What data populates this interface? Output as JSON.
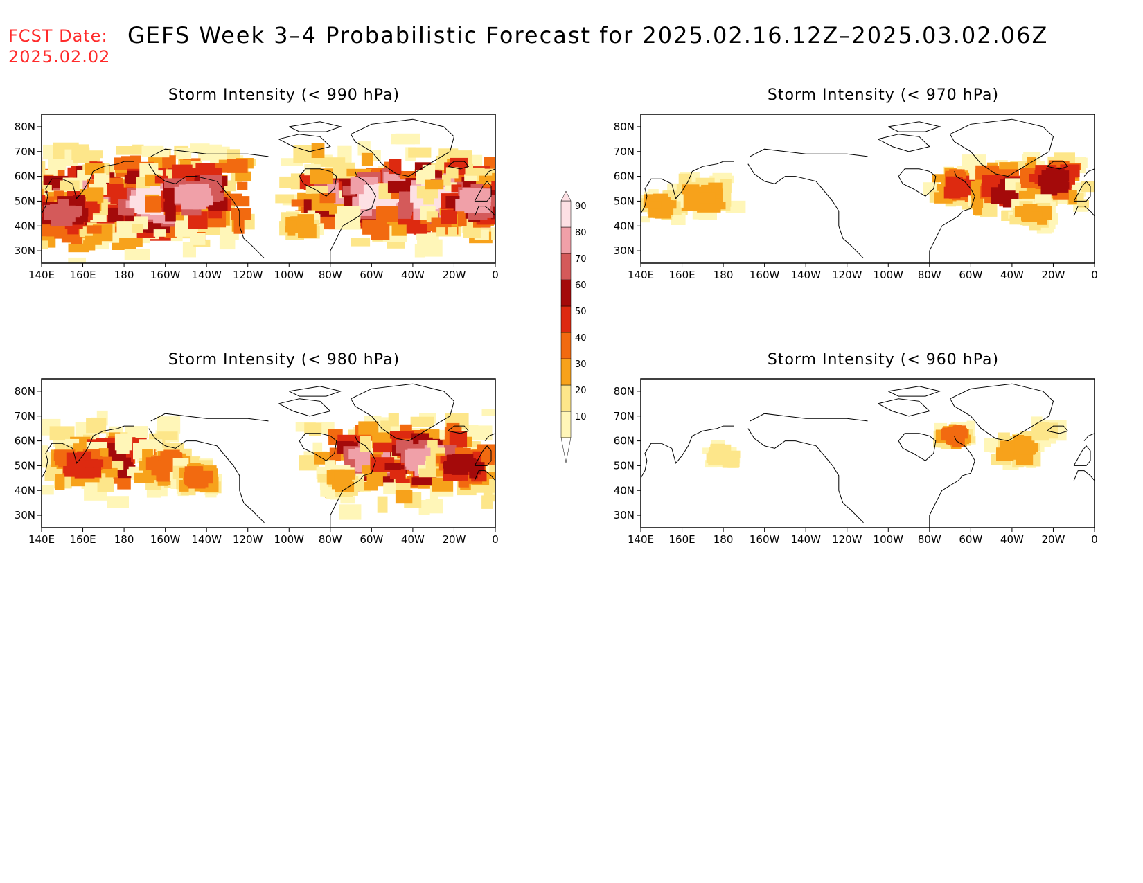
{
  "header": {
    "fcst_line1": "FCST Date:",
    "fcst_line2": "2025.02.02",
    "title": "GEFS Week 3–4 Probabilistic Forecast for 2025.02.16.12Z–2025.03.02.06Z"
  },
  "colors": {
    "p10": "#fff6b8",
    "p20": "#fde68a",
    "p30": "#f7a21b",
    "p40": "#f26a10",
    "p50": "#dd2a10",
    "p60": "#a40a0a",
    "p70": "#d45a5a",
    "p80": "#f0a0a8",
    "p90": "#fde0e4",
    "coast": "#000000"
  },
  "colorbar": {
    "levels": [
      "10",
      "20",
      "30",
      "40",
      "50",
      "60",
      "70",
      "80",
      "90"
    ]
  },
  "axes": {
    "lon_ticks": [
      "140E",
      "160E",
      "180",
      "160W",
      "140W",
      "120W",
      "100W",
      "80W",
      "60W",
      "40W",
      "20W",
      "0"
    ],
    "lat_ticks": [
      "80N",
      "70N",
      "60N",
      "50N",
      "40N",
      "30N"
    ]
  },
  "panels": [
    {
      "title": "Storm Intensity (< 990 hPa)",
      "blobs": [
        {
          "lon": 175,
          "lat": 50,
          "level": 8,
          "spread": 1.0
        },
        {
          "lon": 160,
          "lat": 52,
          "level": 7,
          "spread": 0.9
        },
        {
          "lon": 195,
          "lat": 50,
          "level": 8,
          "spread": 0.9
        },
        {
          "lon": 215,
          "lat": 52,
          "level": 7,
          "spread": 0.8
        },
        {
          "lon": 150,
          "lat": 45,
          "level": 6,
          "spread": 0.7
        },
        {
          "lon": 285,
          "lat": 52,
          "level": 7,
          "spread": 0.7
        },
        {
          "lon": 305,
          "lat": 52,
          "level": 8,
          "spread": 0.9
        },
        {
          "lon": 330,
          "lat": 52,
          "level": 8,
          "spread": 0.9
        },
        {
          "lon": 350,
          "lat": 50,
          "level": 7,
          "spread": 0.6
        },
        {
          "lon": 265,
          "lat": 40,
          "level": 2,
          "spread": 0.4
        }
      ]
    },
    {
      "title": "Storm Intensity (< 970 hPa)",
      "blobs": [
        {
          "lon": 170,
          "lat": 52,
          "level": 2,
          "spread": 0.9
        },
        {
          "lon": 150,
          "lat": 48,
          "level": 2,
          "spread": 0.5
        },
        {
          "lon": 295,
          "lat": 56,
          "level": 4,
          "spread": 0.5
        },
        {
          "lon": 320,
          "lat": 54,
          "level": 5,
          "spread": 0.8
        },
        {
          "lon": 340,
          "lat": 58,
          "level": 5,
          "spread": 0.6
        },
        {
          "lon": 330,
          "lat": 45,
          "level": 2,
          "spread": 0.5
        }
      ]
    },
    {
      "title": "Storm Intensity (< 980 hPa)",
      "blobs": [
        {
          "lon": 175,
          "lat": 52,
          "level": 5,
          "spread": 1.0
        },
        {
          "lon": 160,
          "lat": 50,
          "level": 4,
          "spread": 0.8
        },
        {
          "lon": 200,
          "lat": 50,
          "level": 3,
          "spread": 0.8
        },
        {
          "lon": 215,
          "lat": 45,
          "level": 3,
          "spread": 0.4
        },
        {
          "lon": 300,
          "lat": 52,
          "level": 7,
          "spread": 0.8
        },
        {
          "lon": 325,
          "lat": 52,
          "level": 7,
          "spread": 0.9
        },
        {
          "lon": 345,
          "lat": 50,
          "level": 5,
          "spread": 0.6
        },
        {
          "lon": 285,
          "lat": 44,
          "level": 2,
          "spread": 0.5
        }
      ]
    },
    {
      "title": "Storm Intensity (< 960 hPa)",
      "blobs": [
        {
          "lon": 180,
          "lat": 54,
          "level": 1,
          "spread": 0.4
        },
        {
          "lon": 292,
          "lat": 62,
          "level": 3,
          "spread": 0.3
        },
        {
          "lon": 322,
          "lat": 56,
          "level": 2,
          "spread": 0.7
        },
        {
          "lon": 338,
          "lat": 64,
          "level": 1,
          "spread": 0.4
        }
      ]
    }
  ]
}
